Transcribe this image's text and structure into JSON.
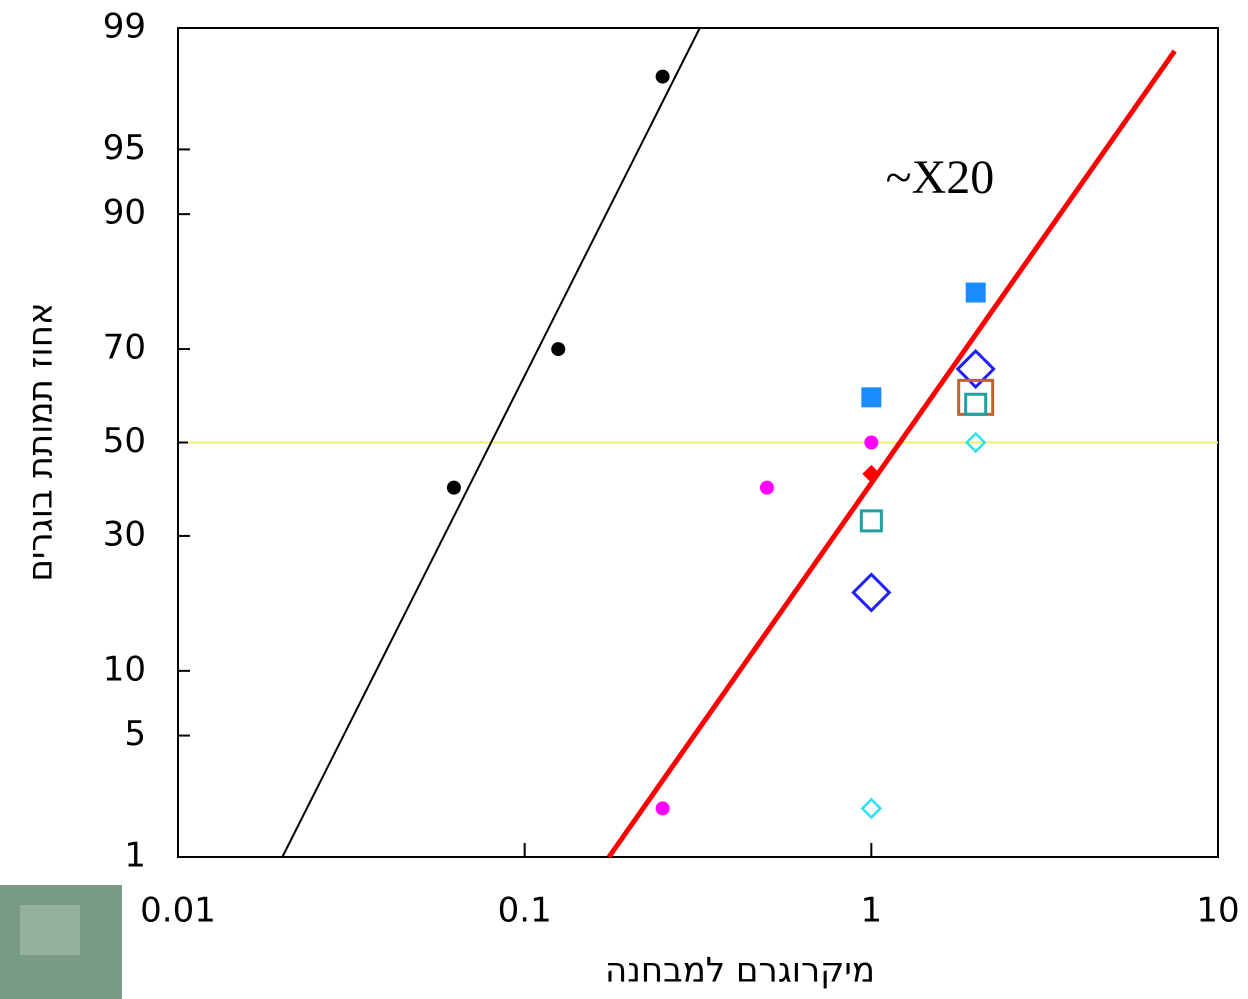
{
  "chart_data": {
    "type": "scatter",
    "annotation": "~X20",
    "xlabel": "מיקרוגרם למבחנה",
    "ylabel": "אחוז תמותת  בוגרים",
    "xscale": "log",
    "yscale": "probit",
    "xlim": [
      0.01,
      10
    ],
    "xticks": [
      0.01,
      0.1,
      1,
      10
    ],
    "ylim": [
      1,
      99
    ],
    "yticks": [
      1,
      5,
      10,
      30,
      50,
      70,
      90,
      95,
      99
    ],
    "hline": {
      "value": 50,
      "color": "#f0f060"
    },
    "series": [
      {
        "marker": "line",
        "color": "#000000",
        "width": 2,
        "x": [
          0.02,
          0.32
        ],
        "values": [
          1,
          99
        ]
      },
      {
        "marker": "line",
        "color": "#ff0000",
        "width": 5,
        "x": [
          0.175,
          7.5
        ],
        "values": [
          1,
          98.6
        ]
      },
      {
        "marker": "dot",
        "color": "#000000",
        "x": [
          0.0625,
          0.125,
          0.25
        ],
        "values": [
          40,
          70,
          98
        ]
      },
      {
        "marker": "dot",
        "color": "#ff00ff",
        "x": [
          0.25,
          0.5,
          1
        ],
        "values": [
          2,
          40,
          50
        ]
      },
      {
        "marker": "filled-diamond",
        "color": "#ff0000",
        "x": [
          1
        ],
        "values": [
          43
        ]
      },
      {
        "marker": "filled-square",
        "color": "#1a8cff",
        "x": [
          1,
          2
        ],
        "values": [
          60,
          80
        ]
      },
      {
        "marker": "open-diamond-large",
        "color": "#2020ff",
        "x": [
          1,
          2
        ],
        "values": [
          20,
          66
        ]
      },
      {
        "marker": "open-square-large",
        "color": "#c0622c",
        "x": [
          2
        ],
        "values": [
          60
        ]
      },
      {
        "marker": "open-square",
        "color": "#20a0a0",
        "x": [
          1,
          2
        ],
        "values": [
          33,
          58.5
        ]
      },
      {
        "marker": "open-diamond",
        "color": "#30e0f0",
        "x": [
          1,
          2
        ],
        "values": [
          2,
          50
        ]
      }
    ]
  }
}
